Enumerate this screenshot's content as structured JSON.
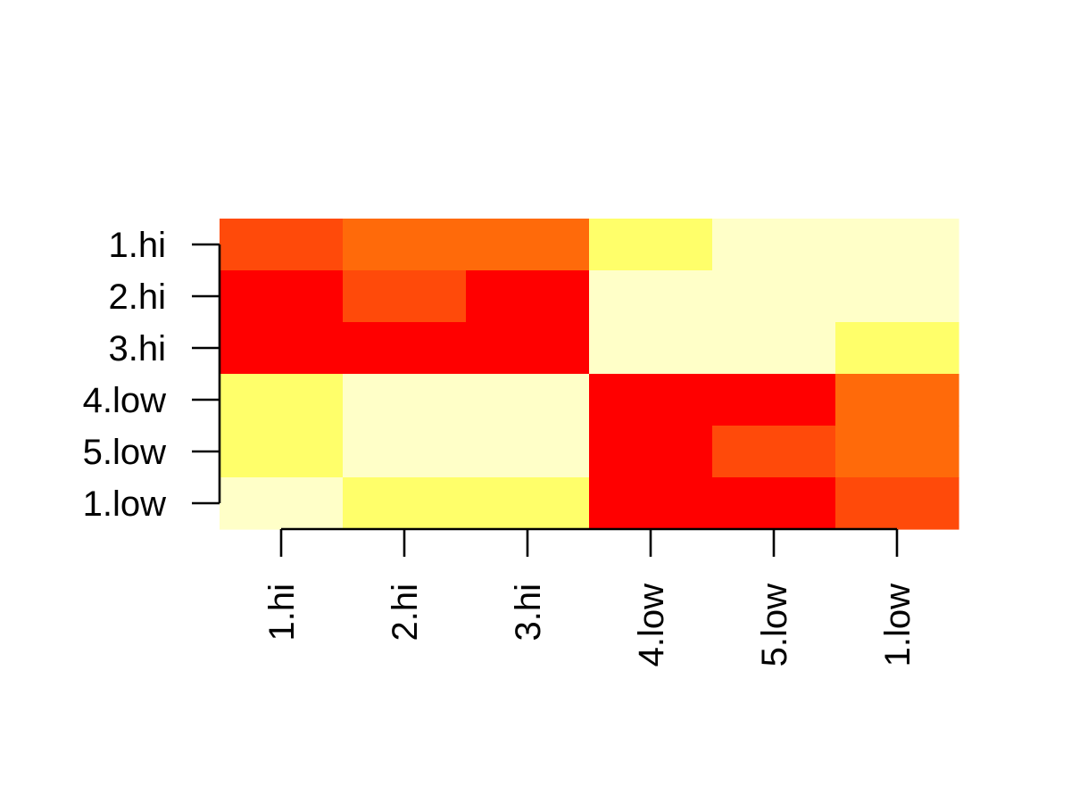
{
  "chart_data": {
    "type": "heatmap",
    "x_labels": [
      "1.hi",
      "2.hi",
      "3.hi",
      "4.low",
      "5.low",
      "1.low"
    ],
    "y_labels": [
      "1.hi",
      "2.hi",
      "3.hi",
      "4.low",
      "5.low",
      "1.low"
    ],
    "values": [
      [
        3,
        2,
        2.5,
        1,
        0,
        0
      ],
      [
        4,
        3,
        4,
        0,
        0,
        0
      ],
      [
        4,
        4,
        4,
        0,
        0,
        1
      ],
      [
        1,
        0,
        0,
        4,
        4,
        2.5
      ],
      [
        1,
        0,
        0,
        4,
        3,
        2
      ],
      [
        0,
        1,
        1,
        4,
        4,
        3
      ]
    ],
    "color_scale": "heat",
    "color_stops": [
      "#FFFFC8",
      "#FFFF6A",
      "#FF8A0A",
      "#FF6A0A",
      "#FF4A0A",
      "#FF0000"
    ],
    "value_range": [
      0,
      4
    ],
    "grid": false,
    "legend": "none"
  }
}
